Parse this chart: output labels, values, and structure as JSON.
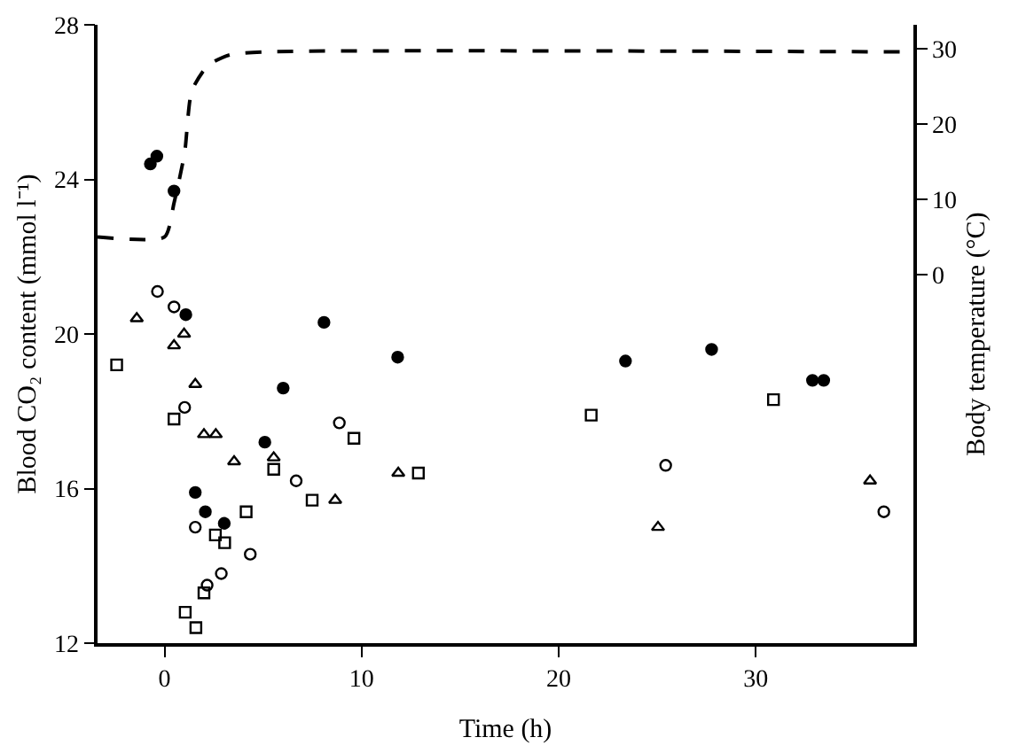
{
  "chart_data": {
    "type": "scatter",
    "xlabel": "Time (h)",
    "ylabel": "Blood CO₂ content (mmol l⁻¹)",
    "y2label": "Body temperature (°C)",
    "xlim": [
      -3.4,
      38
    ],
    "xticks": [
      0,
      10,
      20,
      30
    ],
    "ylim": [
      12,
      28
    ],
    "yticks": [
      12,
      16,
      20,
      24,
      28
    ],
    "y2lim": [
      -49,
      33.2
    ],
    "y2ticks": [
      0,
      10,
      20,
      30
    ],
    "legend": false,
    "series": [
      {
        "color": "#000000",
        "marker": "circle",
        "x": [
          -0.72,
          -0.39,
          0.48,
          1.08,
          8.09,
          11.83,
          6.02,
          5.09,
          1.56,
          2.07,
          3.03,
          23.39,
          27.76,
          32.88,
          33.45
        ],
        "values": [
          24.4,
          24.6,
          23.7,
          20.5,
          20.3,
          19.4,
          18.6,
          17.2,
          15.9,
          15.4,
          15.1,
          19.3,
          19.6,
          18.8,
          18.8
        ]
      },
      {
        "color": "#000000",
        "marker": "circle",
        "x": [
          -0.36,
          0.48,
          1.02,
          8.87,
          6.68,
          1.56,
          4.35,
          2.88,
          2.16,
          25.43,
          36.5
        ],
        "values": [
          21.1,
          20.7,
          18.1,
          17.7,
          16.2,
          15.0,
          14.3,
          13.8,
          13.5,
          16.6,
          15.4
        ]
      },
      {
        "color": "#000000",
        "marker": "triangle",
        "x": [
          -1.41,
          0.99,
          0.48,
          1.56,
          2.0,
          2.6,
          3.53,
          5.54,
          11.86,
          8.66,
          25.04,
          35.8
        ],
        "values": [
          20.4,
          20.0,
          19.7,
          18.7,
          17.4,
          17.4,
          16.7,
          16.8,
          16.4,
          15.7,
          15.0,
          16.2
        ]
      },
      {
        "color": "#000000",
        "marker": "square",
        "x": [
          -2.43,
          0.48,
          9.61,
          5.54,
          12.88,
          7.49,
          4.14,
          2.58,
          3.05,
          2.0,
          1.05,
          1.59,
          21.65,
          30.9
        ],
        "values": [
          19.2,
          17.8,
          17.3,
          16.5,
          16.4,
          15.7,
          15.4,
          14.8,
          14.6,
          13.3,
          12.8,
          12.4,
          17.9,
          18.3
        ]
      },
      {
        "type": "line",
        "axis": "y2",
        "color": "#000000",
        "line_style": "dashed",
        "marker": "none",
        "x": [
          -3.4,
          0,
          0.48,
          1.02,
          1.38,
          2.2,
          3.3,
          5,
          38
        ],
        "values": [
          5,
          5,
          9.5,
          16.2,
          24.4,
          27.8,
          29.2,
          29.6,
          29.6
        ]
      }
    ]
  }
}
